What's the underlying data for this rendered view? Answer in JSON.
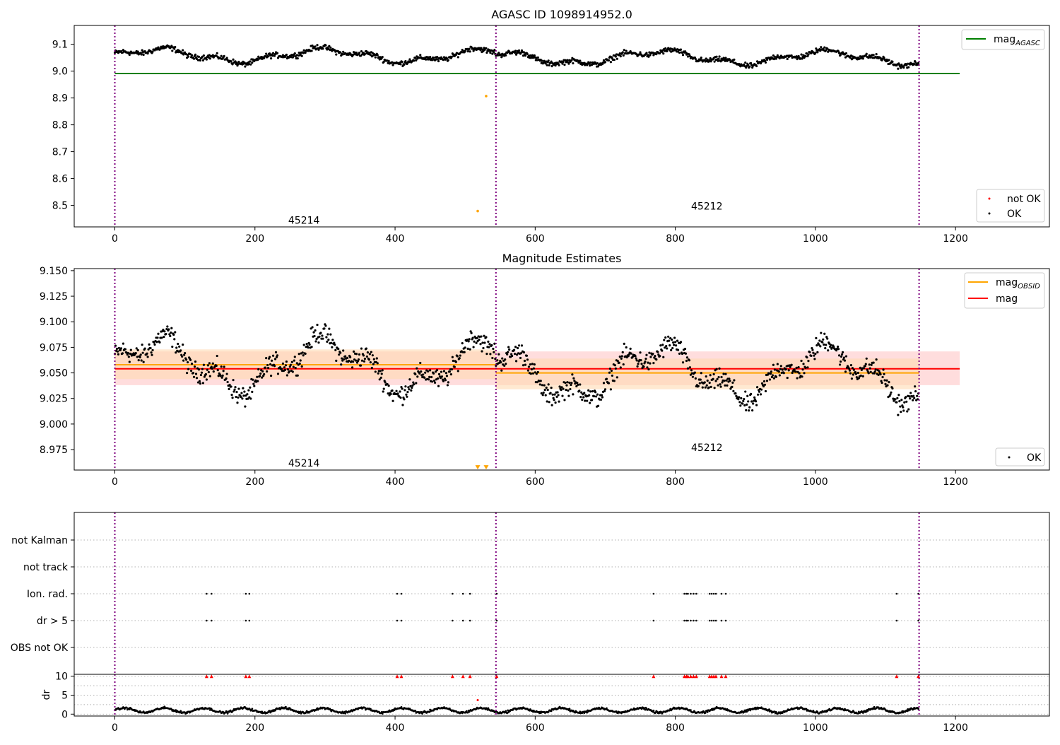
{
  "colors": {
    "ok": "#000000",
    "not_ok": "#ff0000",
    "mag_agasc": "#008000",
    "mag_obsid": "#ffa500",
    "mag": "#ff0000",
    "obs_boundary": "#800080",
    "band_obsid": "#ffdab3",
    "band_mag": "#ffb3b3"
  },
  "icons": {
    "ok_marker": "black-dot",
    "not_ok_marker": "red-dot",
    "upper_limit_marker": "orange-triangle-down"
  },
  "obs_boundaries": [
    0,
    544,
    1148
  ],
  "obsids": [
    {
      "label": "45214",
      "x_start": 0,
      "x_end": 544,
      "mag_obsid": 9.058,
      "band_low": 9.044,
      "band_high": 9.073
    },
    {
      "label": "45212",
      "x_start": 544,
      "x_end": 1148,
      "mag_obsid": 9.05,
      "band_low": 9.034,
      "band_high": 9.064
    }
  ],
  "chart_data": [
    {
      "type": "scatter",
      "title": "AGASC ID 1098914952.0",
      "xlim": [
        -58,
        1334
      ],
      "ylim": [
        8.42,
        9.17
      ],
      "xticks": [
        "0",
        "200",
        "400",
        "600",
        "800",
        "1000",
        "1200"
      ],
      "yticks": [
        "8.5",
        "8.6",
        "8.7",
        "8.8",
        "8.9",
        "9.0",
        "9.1"
      ],
      "mag_agasc": 8.991,
      "mag_agasc_range": [
        0,
        1206
      ],
      "outliers": [
        {
          "x": 530,
          "y": 8.907
        },
        {
          "x": 518,
          "y": 8.479
        }
      ],
      "obsid_label_y": [
        8.445,
        8.497
      ],
      "legend_lines": [
        {
          "label": "mag",
          "sub": "AGASC"
        }
      ],
      "legend_points": [
        {
          "label": "not OK"
        },
        {
          "label": "OK"
        }
      ]
    },
    {
      "type": "scatter",
      "title": "Magnitude Estimates",
      "xlim": [
        -58,
        1334
      ],
      "ylim": [
        8.955,
        9.152
      ],
      "xticks": [
        "0",
        "200",
        "400",
        "600",
        "800",
        "1000",
        "1200"
      ],
      "yticks": [
        "8.975",
        "9.000",
        "9.025",
        "9.050",
        "9.075",
        "9.100",
        "9.125",
        "9.150"
      ],
      "mag": 9.054,
      "mag_range": [
        0,
        1206
      ],
      "mag_band": [
        9.038,
        9.071
      ],
      "upper_limits": [
        {
          "x": 518,
          "y": 8.957
        },
        {
          "x": 530,
          "y": 8.957
        }
      ],
      "obsid_label_y": [
        8.962,
        8.977
      ],
      "legend_lines": [
        {
          "label": "mag",
          "sub": "OBSID"
        },
        {
          "label": "mag",
          "sub": ""
        }
      ],
      "legend_points": [
        {
          "label": "OK"
        }
      ]
    },
    {
      "type": "scatter",
      "xlim": [
        -58,
        1334
      ],
      "categories": [
        "not Kalman",
        "not track",
        "Ion. rad.",
        "dr > 5",
        "OBS not OK"
      ],
      "flag_x": [
        131,
        138,
        187,
        192,
        403,
        409,
        482,
        497,
        507,
        545,
        769,
        813,
        816,
        818,
        822,
        826,
        830,
        849,
        852,
        855,
        858,
        866,
        872,
        1116,
        1147
      ],
      "ion_rad_x": [
        131,
        138,
        187,
        192,
        403,
        409,
        482,
        497,
        507,
        545,
        769,
        813,
        816,
        818,
        822,
        826,
        830,
        849,
        852,
        855,
        858,
        866,
        872,
        1116,
        1147
      ],
      "dr_gt5_x": [
        131,
        138,
        187,
        192,
        403,
        409,
        482,
        497,
        507,
        545,
        769,
        813,
        816,
        818,
        822,
        826,
        830,
        849,
        852,
        855,
        858,
        866,
        872,
        1116,
        1147
      ]
    },
    {
      "type": "scatter",
      "ylabel": "dr",
      "xlim": [
        -58,
        1334
      ],
      "ylim": [
        -0.5,
        10.5
      ],
      "xticks": [
        "0",
        "200",
        "400",
        "600",
        "800",
        "1000",
        "1200"
      ],
      "yticks": [
        "0",
        "5",
        "10"
      ],
      "clipped_red_y": 9.9,
      "outlier_red": {
        "x": 518,
        "y": 3.7
      }
    }
  ]
}
